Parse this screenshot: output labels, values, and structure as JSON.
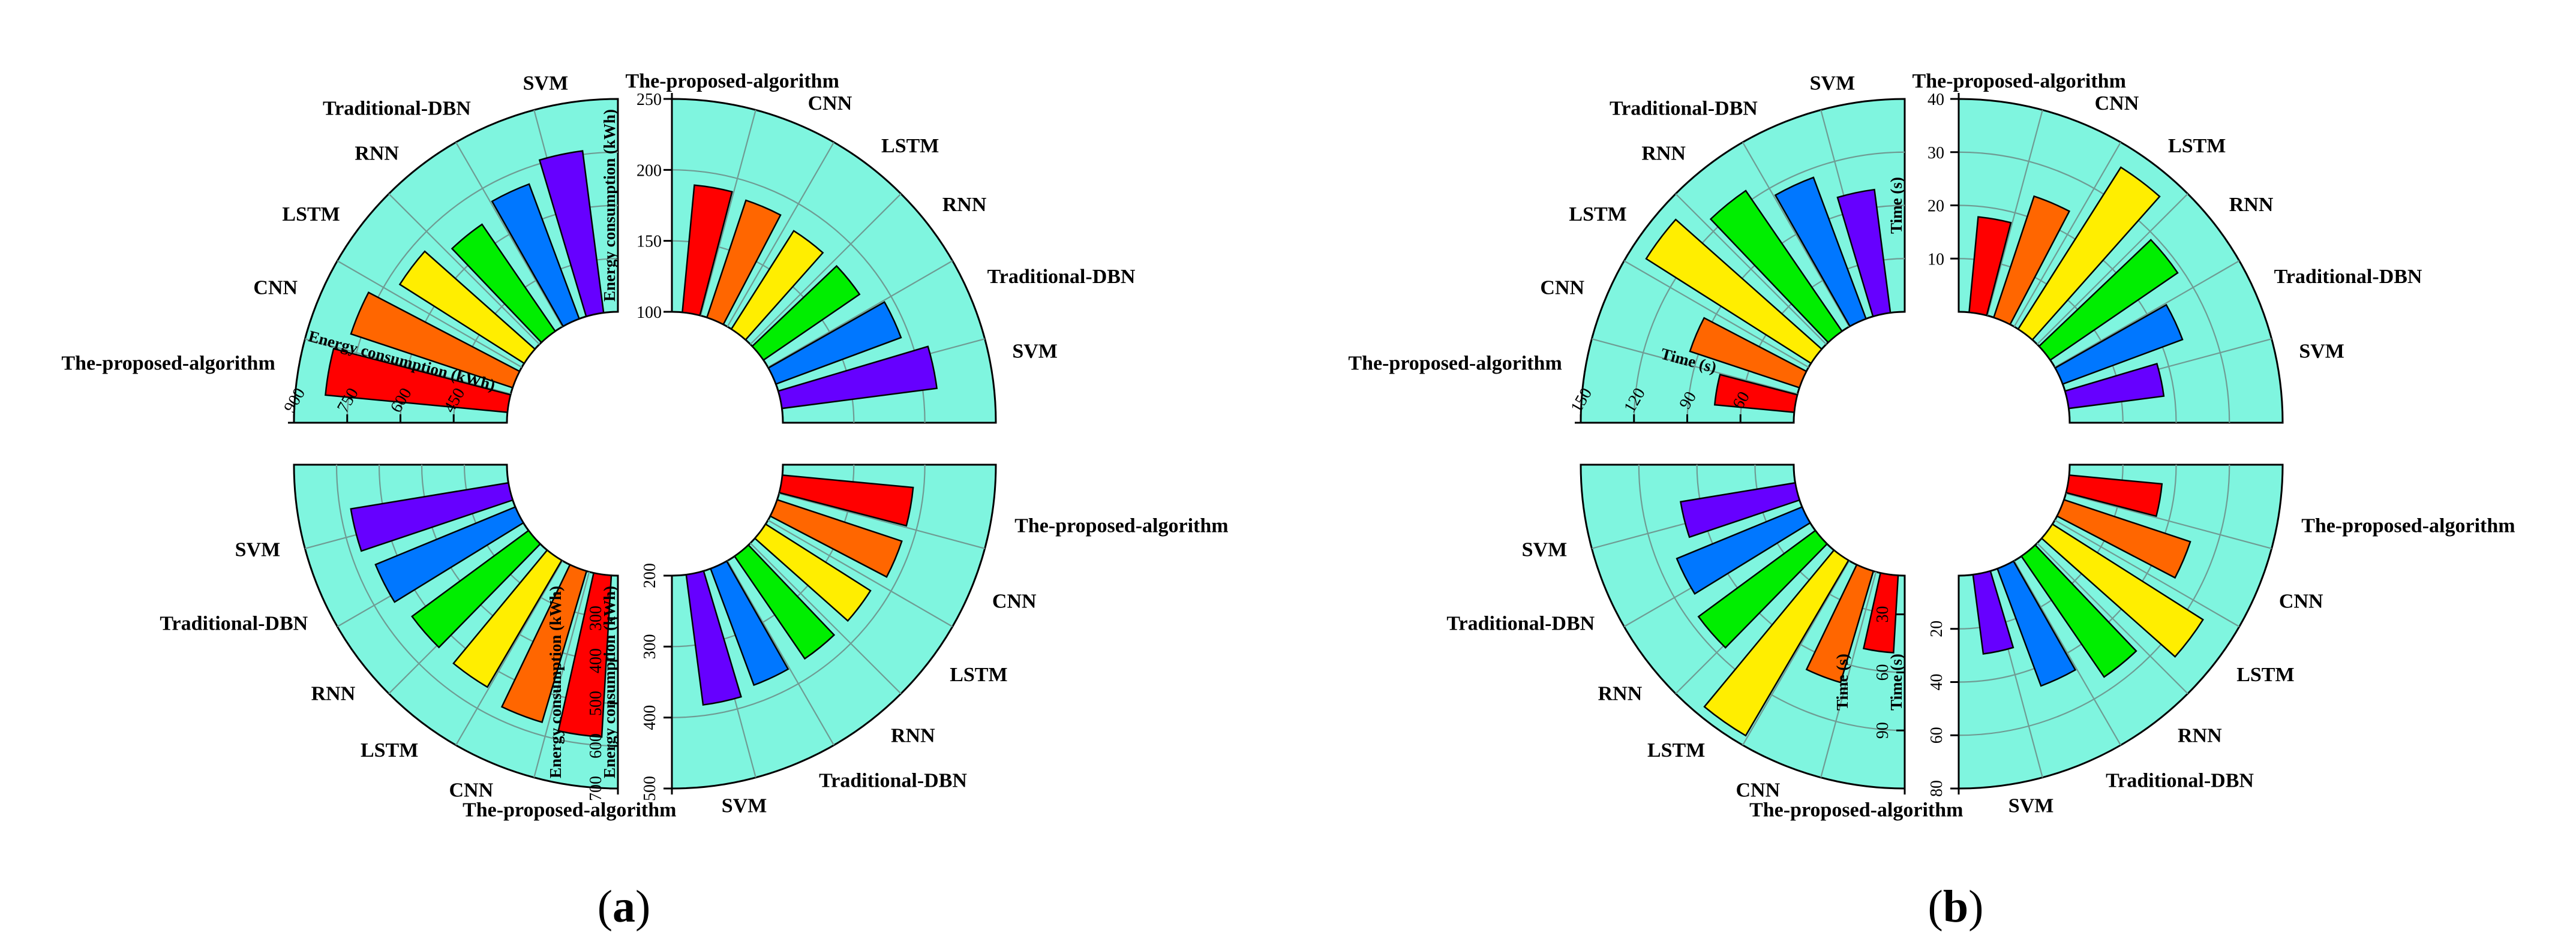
{
  "chart_data": [
    {
      "panel": "a",
      "type": "radial-bar",
      "title": "",
      "categories": [
        "The-proposed-algorithm",
        "CNN",
        "LSTM",
        "RNN",
        "Traditional-DBN",
        "SVM"
      ],
      "colors": [
        "#ff0000",
        "#ff6600",
        "#ffee00",
        "#00ee00",
        "#0077ff",
        "#6600ff"
      ],
      "subcharts": [
        {
          "quadrant": "top-left",
          "axis_label": "Energy consumption (kWh)",
          "min": 300,
          "max": 900,
          "ticks": [
            450,
            600,
            750,
            900
          ],
          "values": [
            815,
            780,
            715,
            665,
            705,
            760
          ]
        },
        {
          "quadrant": "top-right",
          "axis_label": "Energy consumption (kWh)",
          "min": 100,
          "max": 250,
          "ticks": [
            100,
            150,
            200,
            250
          ],
          "values": [
            190,
            187,
            182,
            182,
            194,
            210
          ]
        },
        {
          "quadrant": "bottom-left",
          "axis_label": "Energy consumption (kWh)",
          "min": 200,
          "max": 700,
          "ticks": [
            300,
            400,
            500,
            600,
            700
          ],
          "values": [
            580,
            570,
            545,
            540,
            555,
            575
          ]
        },
        {
          "quadrant": "bottom-right",
          "axis_label": "Energy consumption (kWh)",
          "min": 200,
          "max": 500,
          "ticks": [
            200,
            300,
            400,
            500
          ],
          "values": [
            385,
            385,
            375,
            375,
            375,
            385
          ]
        }
      ],
      "panel_label_prefix": "(",
      "panel_label": "a",
      "panel_label_suffix": ")"
    },
    {
      "panel": "b",
      "type": "radial-bar",
      "title": "",
      "categories": [
        "The-proposed-algorithm",
        "CNN",
        "LSTM",
        "RNN",
        "Traditional-DBN",
        "SVM"
      ],
      "colors": [
        "#ff0000",
        "#ff6600",
        "#ffee00",
        "#00ee00",
        "#0077ff",
        "#6600ff"
      ],
      "subcharts": [
        {
          "quadrant": "top-left",
          "axis_label": "Time (s)",
          "min": 30,
          "max": 150,
          "ticks": [
            60,
            90,
            120,
            150
          ],
          "values": [
            75,
            95,
            140,
            126,
            115,
            100
          ]
        },
        {
          "quadrant": "top-right",
          "axis_label": "Time (s)",
          "min": 0,
          "max": 40,
          "ticks": [
            10,
            20,
            30,
            40
          ],
          "values": [
            18,
            24,
            36,
            29,
            24,
            18
          ]
        },
        {
          "quadrant": "bottom-left",
          "axis_label": "Time (s)",
          "min": 10,
          "max": 120,
          "ticks": [
            30,
            60,
            90
          ],
          "values": [
            50,
            70,
            115,
            85,
            80,
            70
          ]
        },
        {
          "quadrant": "bottom-right",
          "axis_label": "Time (s)",
          "min": 0,
          "max": 80,
          "ticks": [
            20,
            40,
            60,
            80
          ],
          "values": [
            35,
            50,
            67,
            55,
            47,
            30
          ]
        }
      ],
      "panel_label_prefix": "(",
      "panel_label": "b",
      "panel_label_suffix": ")"
    }
  ]
}
